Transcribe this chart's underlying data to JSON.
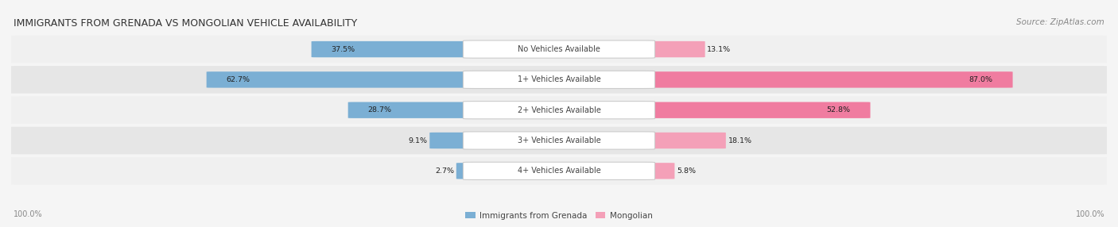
{
  "title": "IMMIGRANTS FROM GRENADA VS MONGOLIAN VEHICLE AVAILABILITY",
  "source": "Source: ZipAtlas.com",
  "categories": [
    "No Vehicles Available",
    "1+ Vehicles Available",
    "2+ Vehicles Available",
    "3+ Vehicles Available",
    "4+ Vehicles Available"
  ],
  "grenada_values": [
    37.5,
    62.7,
    28.7,
    9.1,
    2.7
  ],
  "mongolian_values": [
    13.1,
    87.0,
    52.8,
    18.1,
    5.8
  ],
  "grenada_color": "#7bafd4",
  "mongolian_color": "#f07ca0",
  "mongolian_color_light": "#f4a0b8",
  "row_colors": [
    "#f0f0f0",
    "#e6e6e6"
  ],
  "bg_color": "#f5f5f5",
  "figsize": [
    14.06,
    2.86
  ],
  "dpi": 100
}
